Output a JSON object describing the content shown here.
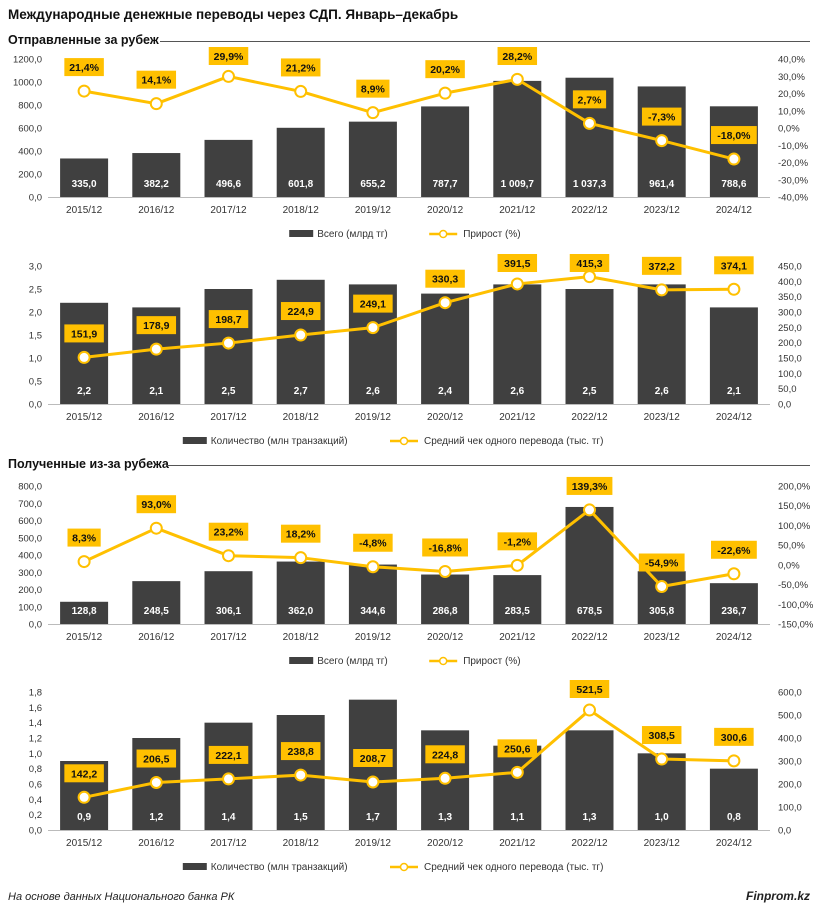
{
  "title": "Международные денежные переводы через СДП. Январь–декабрь",
  "sections": [
    {
      "title": "Отправленные за рубеж"
    },
    {
      "title": "Полученные из-за рубежа"
    }
  ],
  "footer": {
    "source": "На основе данных Национального банка РК",
    "brand": "Finprom.kz"
  },
  "colors": {
    "bar": "#404040",
    "line": "#FFC000",
    "label_box": "#FFC000",
    "bar_label": "#ffffff"
  },
  "chart_data": [
    {
      "type": "bar",
      "section": "Отправленные за рубеж",
      "categories": [
        "2015/12",
        "2016/12",
        "2017/12",
        "2018/12",
        "2019/12",
        "2020/12",
        "2021/12",
        "2022/12",
        "2023/12",
        "2024/12"
      ],
      "series": [
        {
          "name": "Всего (млрд тг)",
          "type": "bar",
          "axis": "left",
          "values": [
            335.0,
            382.2,
            496.6,
            601.8,
            655.2,
            787.7,
            1009.7,
            1037.3,
            961.4,
            788.6
          ],
          "labels": [
            "335,0",
            "382,2",
            "496,6",
            "601,8",
            "655,2",
            "787,7",
            "1 009,7",
            "1 037,3",
            "961,4",
            "788,6"
          ]
        },
        {
          "name": "Прирост (%)",
          "type": "line",
          "axis": "right",
          "values": [
            21.4,
            14.1,
            29.9,
            21.2,
            8.9,
            20.2,
            28.2,
            2.7,
            -7.3,
            -18.0
          ],
          "labels": [
            "21,4%",
            "14,1%",
            "29,9%",
            "21,2%",
            "8,9%",
            "20,2%",
            "28,2%",
            "2,7%",
            "-7,3%",
            "-18,0%"
          ]
        }
      ],
      "ylim": [
        0,
        1200
      ],
      "y_ticks": [
        "0,0",
        "200,0",
        "400,0",
        "600,0",
        "800,0",
        "1000,0",
        "1200,0"
      ],
      "y2lim": [
        -40,
        40
      ],
      "y2_ticks": [
        "-40,0%",
        "-30,0%",
        "-20,0%",
        "-10,0%",
        "0,0%",
        "10,0%",
        "20,0%",
        "30,0%",
        "40,0%"
      ],
      "legend": "bottom",
      "grid": false
    },
    {
      "type": "bar",
      "section": "Отправленные за рубеж",
      "categories": [
        "2015/12",
        "2016/12",
        "2017/12",
        "2018/12",
        "2019/12",
        "2020/12",
        "2021/12",
        "2022/12",
        "2023/12",
        "2024/12"
      ],
      "series": [
        {
          "name": "Количество (млн транзакций)",
          "type": "bar",
          "axis": "left",
          "values": [
            2.2,
            2.1,
            2.5,
            2.7,
            2.6,
            2.4,
            2.6,
            2.5,
            2.6,
            2.1
          ],
          "labels": [
            "2,2",
            "2,1",
            "2,5",
            "2,7",
            "2,6",
            "2,4",
            "2,6",
            "2,5",
            "2,6",
            "2,1"
          ]
        },
        {
          "name": "Средний чек одного перевода (тыс. тг)",
          "type": "line",
          "axis": "right",
          "values": [
            151.9,
            178.9,
            198.7,
            224.9,
            249.1,
            330.3,
            391.5,
            415.3,
            372.2,
            374.1
          ],
          "labels": [
            "151,9",
            "178,9",
            "198,7",
            "224,9",
            "249,1",
            "330,3",
            "391,5",
            "415,3",
            "372,2",
            "374,1"
          ]
        }
      ],
      "ylim": [
        0,
        3
      ],
      "y_ticks": [
        "0,0",
        "0,5",
        "1,0",
        "1,5",
        "2,0",
        "2,5",
        "3,0"
      ],
      "y2lim": [
        0,
        450
      ],
      "y2_ticks": [
        "0,0",
        "50,0",
        "100,0",
        "150,0",
        "200,0",
        "250,0",
        "300,0",
        "350,0",
        "400,0",
        "450,0"
      ],
      "legend": "bottom",
      "grid": false
    },
    {
      "type": "bar",
      "section": "Полученные из-за рубежа",
      "categories": [
        "2015/12",
        "2016/12",
        "2017/12",
        "2018/12",
        "2019/12",
        "2020/12",
        "2021/12",
        "2022/12",
        "2023/12",
        "2024/12"
      ],
      "series": [
        {
          "name": "Всего (млрд тг)",
          "type": "bar",
          "axis": "left",
          "values": [
            128.8,
            248.5,
            306.1,
            362.0,
            344.6,
            286.8,
            283.5,
            678.5,
            305.8,
            236.7
          ],
          "labels": [
            "128,8",
            "248,5",
            "306,1",
            "362,0",
            "344,6",
            "286,8",
            "283,5",
            "678,5",
            "305,8",
            "236,7"
          ]
        },
        {
          "name": "Прирост (%)",
          "type": "line",
          "axis": "right",
          "values": [
            8.3,
            93.0,
            23.2,
            18.2,
            -4.8,
            -16.8,
            -1.2,
            139.3,
            -54.9,
            -22.6
          ],
          "labels": [
            "8,3%",
            "93,0%",
            "23,2%",
            "18,2%",
            "-4,8%",
            "-16,8%",
            "-1,2%",
            "139,3%",
            "-54,9%",
            "-22,6%"
          ]
        }
      ],
      "ylim": [
        0,
        800
      ],
      "y_ticks": [
        "0,0",
        "100,0",
        "200,0",
        "300,0",
        "400,0",
        "500,0",
        "600,0",
        "700,0",
        "800,0"
      ],
      "y2lim": [
        -150,
        200
      ],
      "y2_ticks": [
        "-150,0%",
        "-100,0%",
        "-50,0%",
        "0,0%",
        "50,0%",
        "100,0%",
        "150,0%",
        "200,0%"
      ],
      "legend": "bottom",
      "grid": false
    },
    {
      "type": "bar",
      "section": "Полученные из-за рубежа",
      "categories": [
        "2015/12",
        "2016/12",
        "2017/12",
        "2018/12",
        "2019/12",
        "2020/12",
        "2021/12",
        "2022/12",
        "2023/12",
        "2024/12"
      ],
      "series": [
        {
          "name": "Количество (млн транзакций)",
          "type": "bar",
          "axis": "left",
          "values": [
            0.9,
            1.2,
            1.4,
            1.5,
            1.7,
            1.3,
            1.1,
            1.3,
            1.0,
            0.8
          ],
          "labels": [
            "0,9",
            "1,2",
            "1,4",
            "1,5",
            "1,7",
            "1,3",
            "1,1",
            "1,3",
            "1,0",
            "0,8"
          ]
        },
        {
          "name": "Средний чек одного перевода (тыс. тг)",
          "type": "line",
          "axis": "right",
          "values": [
            142.2,
            206.5,
            222.1,
            238.8,
            208.7,
            224.8,
            250.6,
            521.5,
            308.5,
            300.6
          ],
          "labels": [
            "142,2",
            "206,5",
            "222,1",
            "238,8",
            "208,7",
            "224,8",
            "250,6",
            "521,5",
            "308,5",
            "300,6"
          ]
        }
      ],
      "ylim": [
        0,
        1.8
      ],
      "y_ticks": [
        "0,0",
        "0,2",
        "0,4",
        "0,6",
        "0,8",
        "1,0",
        "1,2",
        "1,4",
        "1,6",
        "1,8"
      ],
      "y2lim": [
        0,
        600
      ],
      "y2_ticks": [
        "0,0",
        "100,0",
        "200,0",
        "300,0",
        "400,0",
        "500,0",
        "600,0"
      ],
      "legend": "bottom",
      "grid": false
    }
  ]
}
